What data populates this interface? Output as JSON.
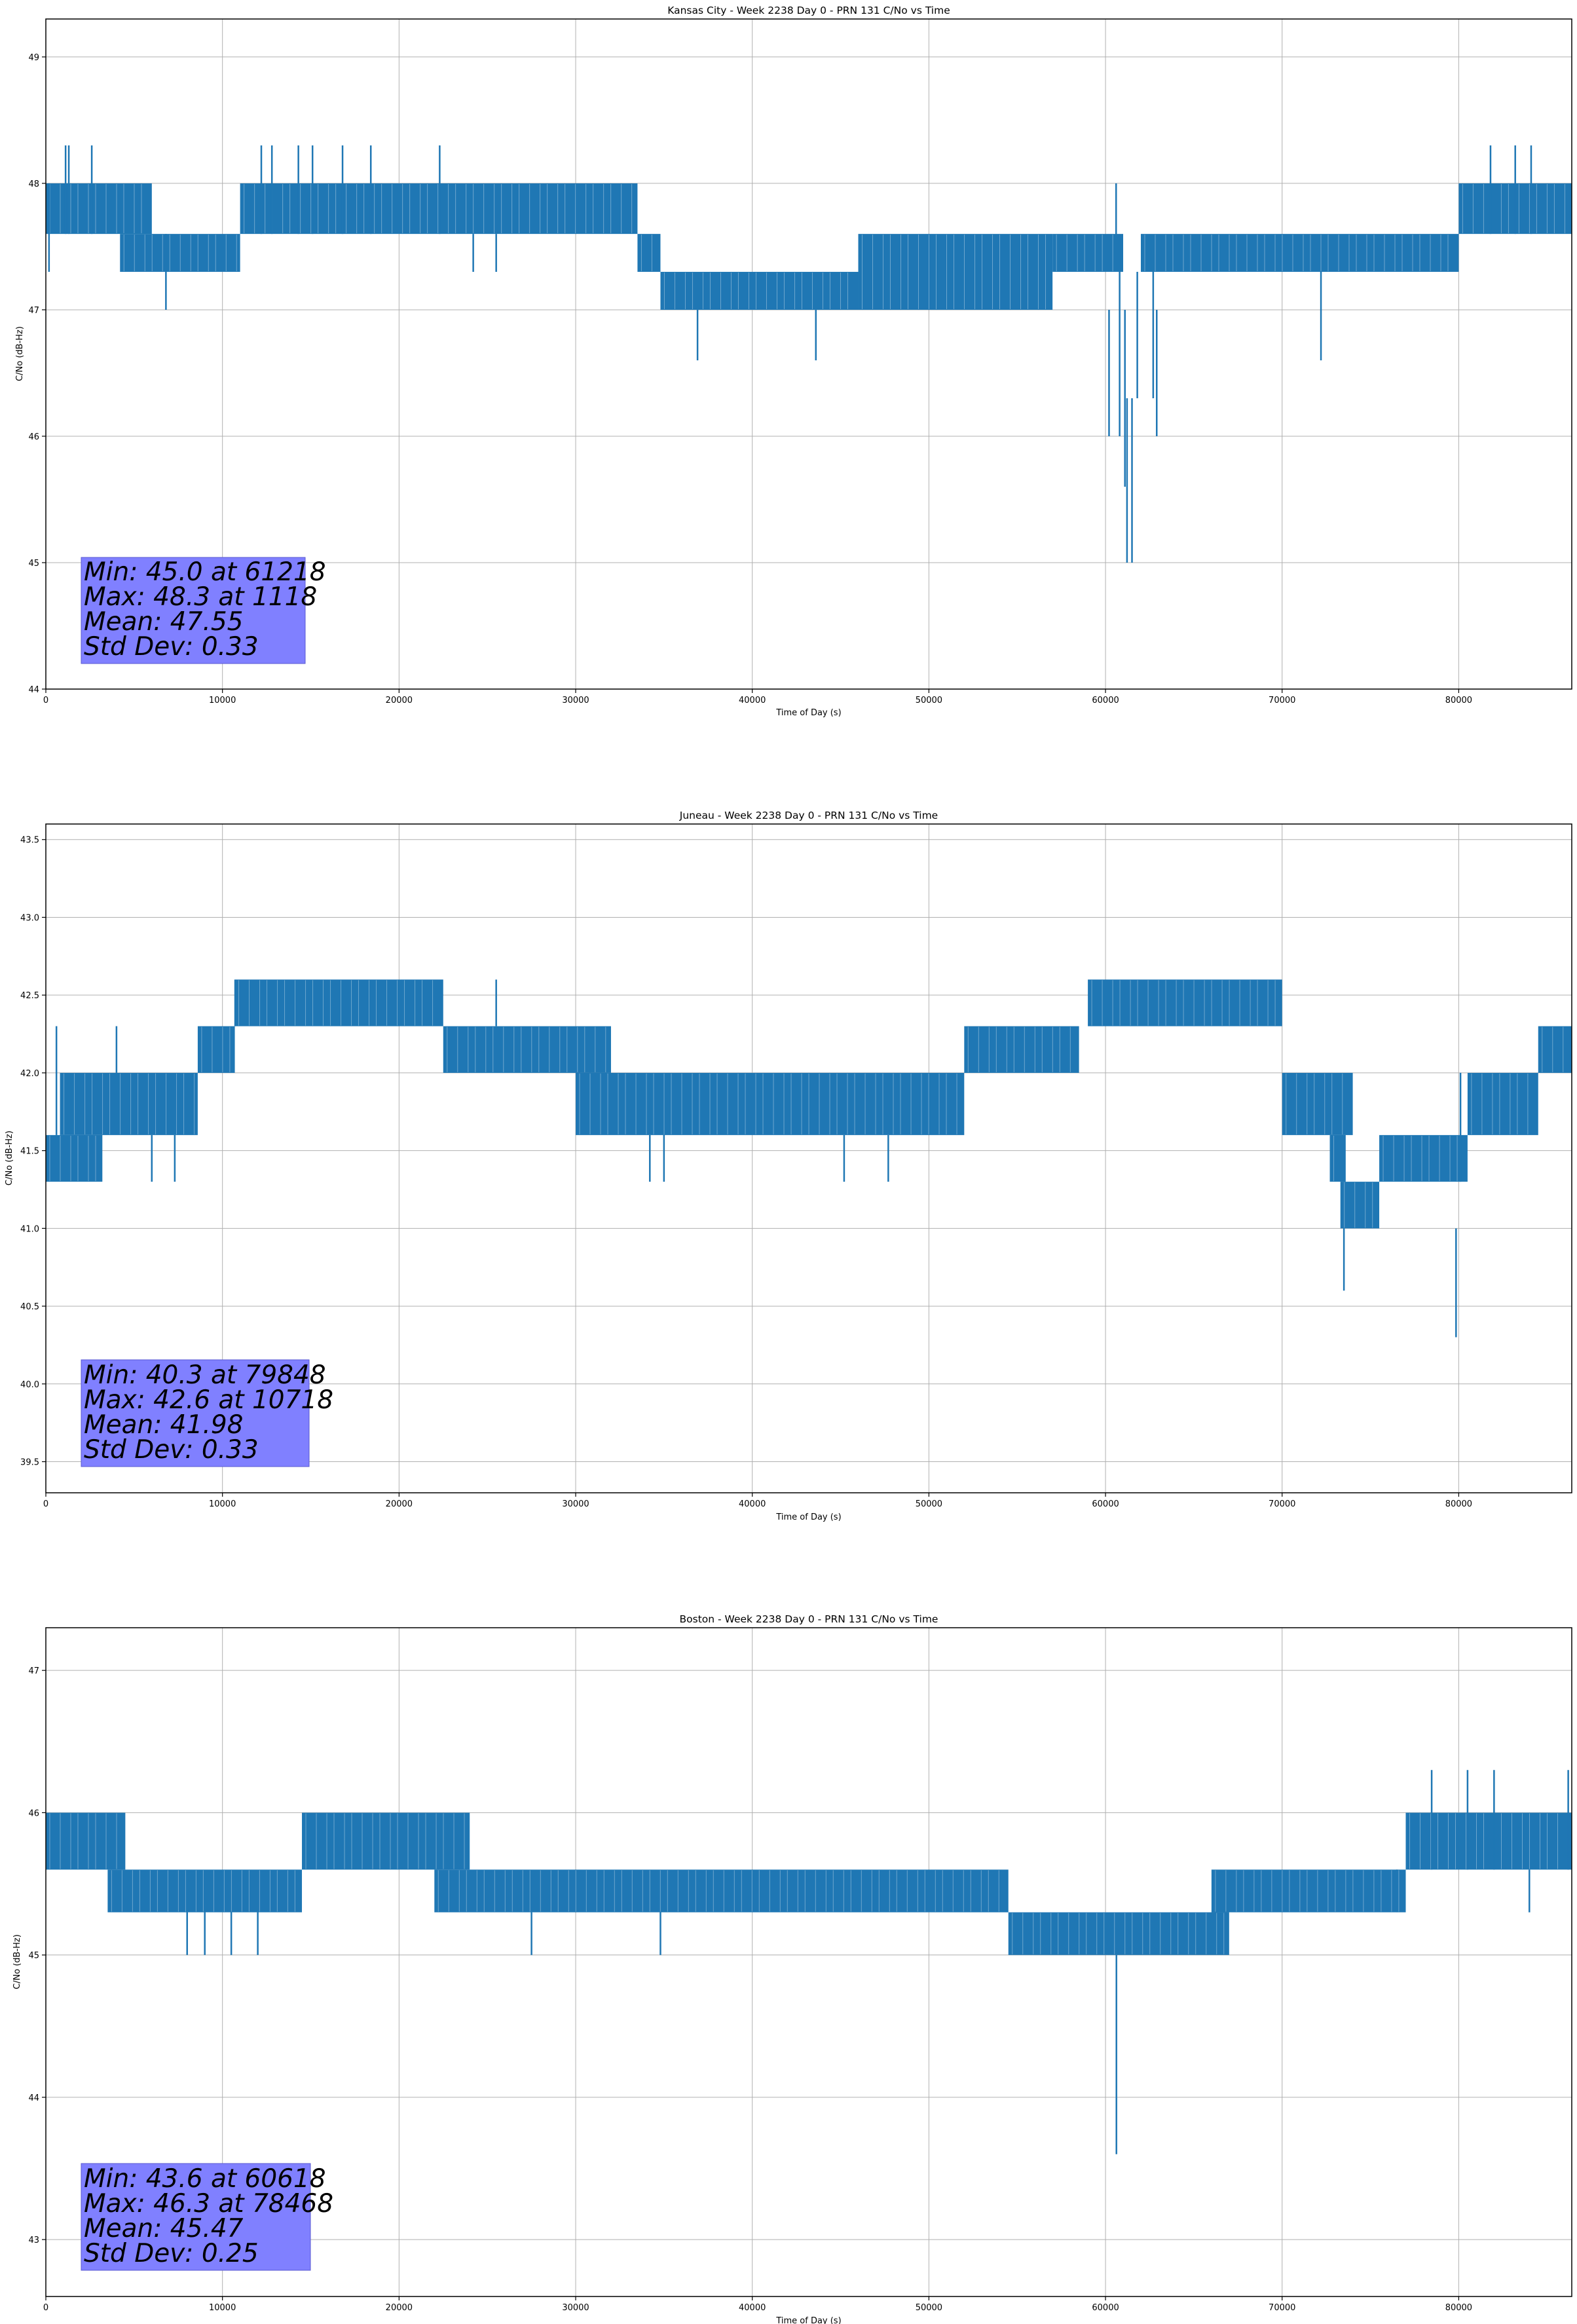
{
  "figure": {
    "panels": [
      {
        "title": "Kansas City - Week 2238 Day 0 - PRN 131 C/No vs Time",
        "stats": [
          "Min: 45.0 at 61218",
          "Max: 48.3 at 1118",
          "Mean: 47.55",
          "Std Dev: 0.33"
        ]
      },
      {
        "title": "Juneau - Week 2238 Day 0 - PRN 131 C/No vs Time",
        "stats": [
          "Min: 40.3 at 79848",
          "Max: 42.6 at 10718",
          "Mean: 41.98",
          "Std Dev: 0.33"
        ]
      },
      {
        "title": "Boston - Week 2238 Day 0 - PRN 131 C/No vs Time",
        "stats": [
          "Min: 43.6 at 60618",
          "Max: 46.3 at 78468",
          "Mean: 45.47",
          "Std Dev: 0.25"
        ]
      }
    ]
  },
  "colors": {
    "line": "#1f77b4",
    "stats_box": "#8080ff",
    "grid": "#b0b0b0"
  },
  "chart_data": [
    {
      "type": "line",
      "title": "Kansas City - Week 2238 Day 0 - PRN 131 C/No vs Time",
      "xlabel": "Time of Day (s)",
      "ylabel": "C/No (dB-Hz)",
      "xlim": [
        0,
        86400
      ],
      "ylim": [
        44,
        49.3
      ],
      "xticks": [
        0,
        10000,
        20000,
        30000,
        40000,
        50000,
        60000,
        70000,
        80000
      ],
      "yticks": [
        44,
        45,
        46,
        47,
        48,
        49
      ],
      "ytick_labels": [
        "44",
        "45",
        "46",
        "47",
        "48",
        "49"
      ],
      "grid": true,
      "series": [
        {
          "segments": [
            {
              "x0": 0,
              "x1": 6000,
              "lo": 47.6,
              "hi": 48.0
            },
            {
              "x0": 4200,
              "x1": 11000,
              "lo": 47.3,
              "hi": 47.6
            },
            {
              "x0": 11000,
              "x1": 33500,
              "lo": 47.6,
              "hi": 48.0
            },
            {
              "x0": 33500,
              "x1": 34800,
              "lo": 47.3,
              "hi": 47.6
            },
            {
              "x0": 34800,
              "x1": 46000,
              "lo": 47.0,
              "hi": 47.3
            },
            {
              "x0": 46000,
              "x1": 57000,
              "lo": 47.0,
              "hi": 47.6
            },
            {
              "x0": 57000,
              "x1": 61000,
              "lo": 47.3,
              "hi": 47.6
            },
            {
              "x0": 62000,
              "x1": 80000,
              "lo": 47.3,
              "hi": 47.6
            },
            {
              "x0": 80000,
              "x1": 86400,
              "lo": 47.6,
              "hi": 48.0
            }
          ],
          "spikes": [
            {
              "x": 180,
              "lo": 47.3,
              "hi": 48.0
            },
            {
              "x": 1118,
              "lo": 47.6,
              "hi": 48.3
            },
            {
              "x": 1300,
              "lo": 47.6,
              "hi": 48.3
            },
            {
              "x": 2600,
              "lo": 47.6,
              "hi": 48.3
            },
            {
              "x": 6800,
              "lo": 47.0,
              "hi": 47.6
            },
            {
              "x": 12200,
              "lo": 47.6,
              "hi": 48.3
            },
            {
              "x": 12800,
              "lo": 47.6,
              "hi": 48.3
            },
            {
              "x": 14300,
              "lo": 47.6,
              "hi": 48.3
            },
            {
              "x": 15100,
              "lo": 47.6,
              "hi": 48.3
            },
            {
              "x": 16800,
              "lo": 47.6,
              "hi": 48.3
            },
            {
              "x": 18400,
              "lo": 47.6,
              "hi": 48.3
            },
            {
              "x": 22300,
              "lo": 47.6,
              "hi": 48.3
            },
            {
              "x": 24200,
              "lo": 47.3,
              "hi": 47.6
            },
            {
              "x": 25500,
              "lo": 47.3,
              "hi": 47.6
            },
            {
              "x": 36900,
              "lo": 46.6,
              "hi": 47.0
            },
            {
              "x": 43600,
              "lo": 46.6,
              "hi": 47.0
            },
            {
              "x": 60200,
              "lo": 46.0,
              "hi": 47.0
            },
            {
              "x": 60600,
              "lo": 47.3,
              "hi": 48.0
            },
            {
              "x": 60800,
              "lo": 46.0,
              "hi": 47.3
            },
            {
              "x": 61100,
              "lo": 45.6,
              "hi": 47.0
            },
            {
              "x": 61218,
              "lo": 45.0,
              "hi": 46.3
            },
            {
              "x": 61500,
              "lo": 45.0,
              "hi": 46.3
            },
            {
              "x": 61800,
              "lo": 46.3,
              "hi": 47.3
            },
            {
              "x": 62700,
              "lo": 46.3,
              "hi": 47.3
            },
            {
              "x": 62900,
              "lo": 46.0,
              "hi": 47.0
            },
            {
              "x": 72200,
              "lo": 46.6,
              "hi": 47.3
            },
            {
              "x": 81800,
              "lo": 47.6,
              "hi": 48.3
            },
            {
              "x": 83200,
              "lo": 47.6,
              "hi": 48.3
            },
            {
              "x": 84100,
              "lo": 47.6,
              "hi": 48.3
            }
          ]
        }
      ]
    },
    {
      "type": "line",
      "title": "Juneau - Week 2238 Day 0 - PRN 131 C/No vs Time",
      "xlabel": "Time of Day (s)",
      "ylabel": "C/No (dB-Hz)",
      "xlim": [
        0,
        86400
      ],
      "ylim": [
        39.3,
        43.6
      ],
      "xticks": [
        0,
        10000,
        20000,
        30000,
        40000,
        50000,
        60000,
        70000,
        80000
      ],
      "yticks": [
        39.5,
        40.0,
        40.5,
        41.0,
        41.5,
        42.0,
        42.5,
        43.0,
        43.5
      ],
      "ytick_labels": [
        "39.5",
        "40.0",
        "40.5",
        "41.0",
        "41.5",
        "42.0",
        "42.5",
        "43.0",
        "43.5"
      ],
      "grid": true,
      "series": [
        {
          "segments": [
            {
              "x0": 0,
              "x1": 3200,
              "lo": 41.3,
              "hi": 41.6
            },
            {
              "x0": 800,
              "x1": 8600,
              "lo": 41.6,
              "hi": 42.0
            },
            {
              "x0": 8600,
              "x1": 10700,
              "lo": 42.0,
              "hi": 42.3
            },
            {
              "x0": 10700,
              "x1": 22500,
              "lo": 42.3,
              "hi": 42.6
            },
            {
              "x0": 22500,
              "x1": 32000,
              "lo": 42.0,
              "hi": 42.3
            },
            {
              "x0": 30000,
              "x1": 52000,
              "lo": 41.6,
              "hi": 42.0
            },
            {
              "x0": 52000,
              "x1": 58500,
              "lo": 42.0,
              "hi": 42.3
            },
            {
              "x0": 59000,
              "x1": 70000,
              "lo": 42.3,
              "hi": 42.6
            },
            {
              "x0": 70000,
              "x1": 74000,
              "lo": 41.6,
              "hi": 42.0
            },
            {
              "x0": 72700,
              "x1": 73600,
              "lo": 41.3,
              "hi": 41.6
            },
            {
              "x0": 73300,
              "x1": 75500,
              "lo": 41.0,
              "hi": 41.3
            },
            {
              "x0": 75500,
              "x1": 80500,
              "lo": 41.3,
              "hi": 41.6
            },
            {
              "x0": 80500,
              "x1": 84500,
              "lo": 41.6,
              "hi": 42.0
            },
            {
              "x0": 84500,
              "x1": 86400,
              "lo": 42.0,
              "hi": 42.3
            }
          ],
          "spikes": [
            {
              "x": 600,
              "lo": 41.6,
              "hi": 42.3
            },
            {
              "x": 4000,
              "lo": 42.0,
              "hi": 42.3
            },
            {
              "x": 6000,
              "lo": 41.3,
              "hi": 41.6
            },
            {
              "x": 7300,
              "lo": 41.3,
              "hi": 41.6
            },
            {
              "x": 10718,
              "lo": 42.3,
              "hi": 42.6
            },
            {
              "x": 25500,
              "lo": 42.3,
              "hi": 42.6
            },
            {
              "x": 34200,
              "lo": 41.3,
              "hi": 41.6
            },
            {
              "x": 35000,
              "lo": 41.3,
              "hi": 41.6
            },
            {
              "x": 45200,
              "lo": 41.3,
              "hi": 41.6
            },
            {
              "x": 47700,
              "lo": 41.3,
              "hi": 41.6
            },
            {
              "x": 73500,
              "lo": 40.6,
              "hi": 41.0
            },
            {
              "x": 79848,
              "lo": 40.3,
              "hi": 41.0
            },
            {
              "x": 80100,
              "lo": 41.3,
              "hi": 42.0
            }
          ]
        }
      ]
    },
    {
      "type": "line",
      "title": "Boston - Week 2238 Day 0 - PRN 131 C/No vs Time",
      "xlabel": "Time of Day (s)",
      "ylabel": "C/No (dB-Hz)",
      "xlim": [
        0,
        86400
      ],
      "ylim": [
        42.6,
        47.3
      ],
      "xticks": [
        0,
        10000,
        20000,
        30000,
        40000,
        50000,
        60000,
        70000,
        80000
      ],
      "yticks": [
        43,
        44,
        45,
        46,
        47
      ],
      "ytick_labels": [
        "43",
        "44",
        "45",
        "46",
        "47"
      ],
      "grid": true,
      "series": [
        {
          "segments": [
            {
              "x0": 0,
              "x1": 4500,
              "lo": 45.6,
              "hi": 46.0
            },
            {
              "x0": 3500,
              "x1": 14500,
              "lo": 45.3,
              "hi": 45.6
            },
            {
              "x0": 14500,
              "x1": 24000,
              "lo": 45.6,
              "hi": 46.0
            },
            {
              "x0": 22000,
              "x1": 54500,
              "lo": 45.3,
              "hi": 45.6
            },
            {
              "x0": 54500,
              "x1": 67000,
              "lo": 45.0,
              "hi": 45.3
            },
            {
              "x0": 66000,
              "x1": 77000,
              "lo": 45.3,
              "hi": 45.6
            },
            {
              "x0": 77000,
              "x1": 86400,
              "lo": 45.6,
              "hi": 46.0
            }
          ],
          "spikes": [
            {
              "x": 8000,
              "lo": 45.0,
              "hi": 45.3
            },
            {
              "x": 9000,
              "lo": 45.0,
              "hi": 45.3
            },
            {
              "x": 10500,
              "lo": 45.0,
              "hi": 45.3
            },
            {
              "x": 12000,
              "lo": 45.0,
              "hi": 45.3
            },
            {
              "x": 27500,
              "lo": 45.0,
              "hi": 45.3
            },
            {
              "x": 34800,
              "lo": 45.0,
              "hi": 45.3
            },
            {
              "x": 60618,
              "lo": 43.6,
              "hi": 45.0
            },
            {
              "x": 76500,
              "lo": 45.3,
              "hi": 45.6
            },
            {
              "x": 78468,
              "lo": 45.6,
              "hi": 46.3
            },
            {
              "x": 80500,
              "lo": 45.6,
              "hi": 46.3
            },
            {
              "x": 82000,
              "lo": 45.6,
              "hi": 46.3
            },
            {
              "x": 84000,
              "lo": 45.3,
              "hi": 45.6
            },
            {
              "x": 86200,
              "lo": 45.6,
              "hi": 46.3
            }
          ]
        }
      ]
    }
  ]
}
